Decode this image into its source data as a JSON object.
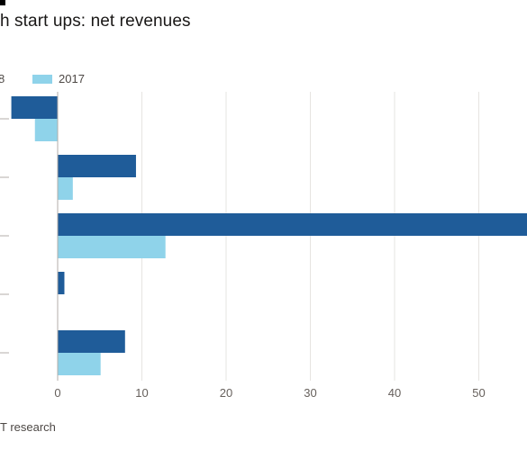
{
  "title": "h start ups: net revenues",
  "source": "T research",
  "colors": {
    "series_2018": "#1f5c99",
    "series_2017": "#8fd3ea",
    "grid": "#e6e4e1",
    "axis": "#b3ada8"
  },
  "chart_data": {
    "type": "bar",
    "orientation": "horizontal",
    "categories": [
      "",
      "",
      "",
      "",
      ""
    ],
    "series": [
      {
        "name": "8",
        "color": "#1f5c99",
        "values": [
          -5.5,
          9.3,
          57,
          0.8,
          8
        ]
      },
      {
        "name": "2017",
        "color": "#8fd3ea",
        "values": [
          -2.7,
          1.8,
          12.8,
          0,
          5.1
        ]
      }
    ],
    "xticks": [
      0,
      10,
      20,
      30,
      40,
      50
    ],
    "xlim": [
      -7,
      56
    ],
    "grid": true,
    "legend_position": "top-left"
  }
}
